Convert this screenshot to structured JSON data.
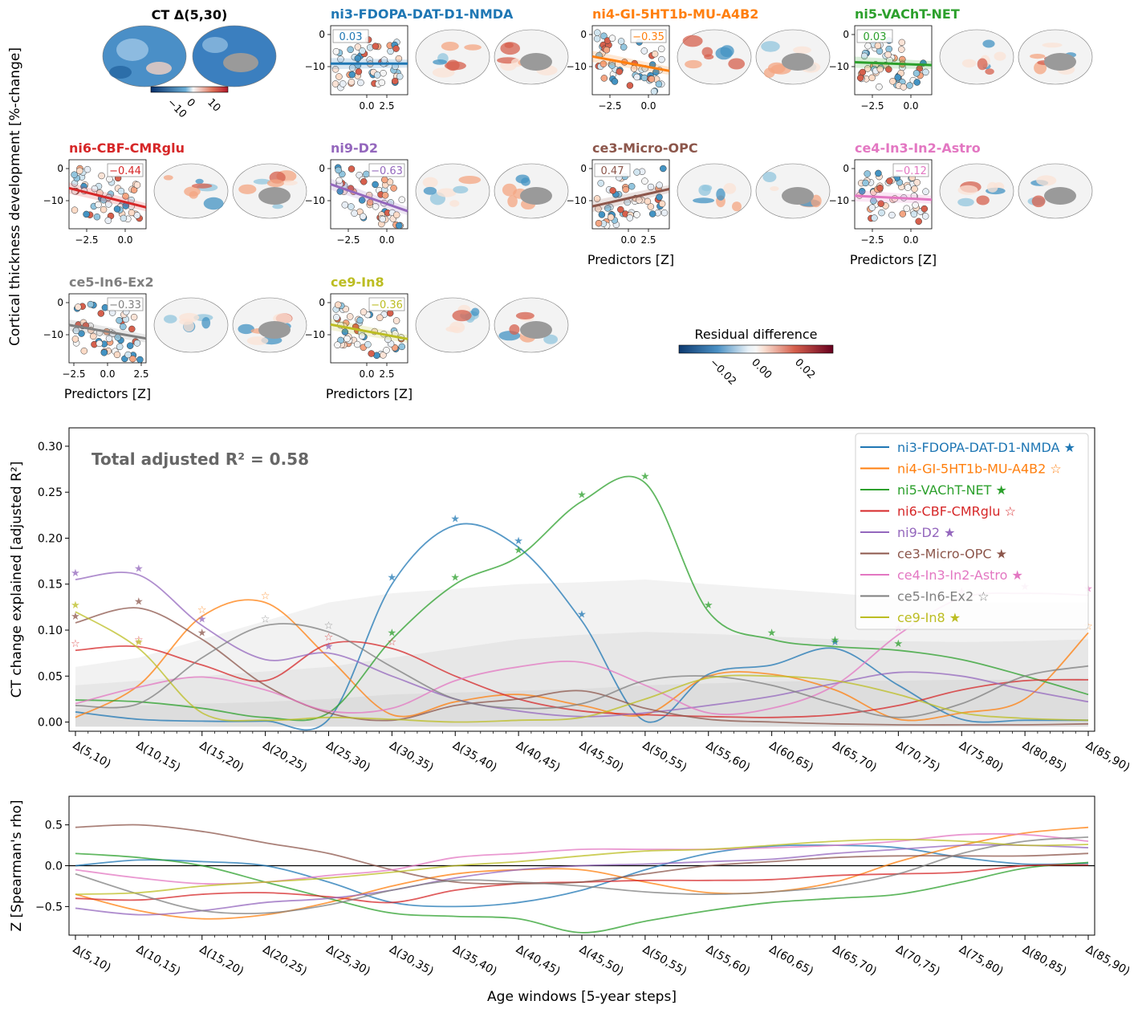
{
  "figure": {
    "left_ylabel": "Cortical thickness development [%-change]",
    "ct_title": "CT Δ(5,30)",
    "ct_colorbar_ticks": [
      "−10",
      "0",
      "10"
    ],
    "residual_title": "Residual difference",
    "residual_ticks": [
      "−0.02",
      "0.00",
      "0.02"
    ],
    "predictors_label": "Predictors [Z]"
  },
  "colors": {
    "ni3-FDOPA-DAT-D1-NMDA": "#1f77b4",
    "ni4-GI-5HT1b-MU-A4B2": "#ff7f0e",
    "ni5-VAChT-NET": "#2ca02c",
    "ni6-CBF-CMRglu": "#d62728",
    "ni9-D2": "#9467bd",
    "ce3-Micro-OPC": "#8c564b",
    "ce4-In3-In2-Astro": "#e377c2",
    "ce5-In6-Ex2": "#7f7f7f",
    "ce9-In8": "#bcbd22"
  },
  "panels": [
    {
      "name": "ni3-FDOPA-DAT-D1-NMDA",
      "rho": "0.03",
      "slope": 0.0,
      "yticks": [
        "0",
        "−10"
      ],
      "xticks": [
        "0.0",
        "2.5"
      ],
      "xlabel": false
    },
    {
      "name": "ni4-GI-5HT1b-MU-A4B2",
      "rho": "−0.35",
      "slope": -1.5,
      "yticks": [
        "0",
        "−10"
      ],
      "xticks": [
        "−2.5",
        "0.0"
      ],
      "xlabel": false
    },
    {
      "name": "ni5-VAChT-NET",
      "rho": "0.03",
      "slope": -0.3,
      "yticks": [
        "0",
        "−10"
      ],
      "xticks": [
        "−2.5",
        "0.0"
      ],
      "xlabel": false
    },
    {
      "name": "ni6-CBF-CMRglu",
      "rho": "−0.44",
      "slope": -2.0,
      "yticks": [
        "0",
        "−10"
      ],
      "xticks": [
        "−2.5",
        "0.0"
      ],
      "xlabel": false
    },
    {
      "name": "ni9-D2",
      "rho": "−0.63",
      "slope": -2.8,
      "yticks": [
        "0",
        "−10"
      ],
      "xticks": [
        "−2.5",
        "0.0"
      ],
      "xlabel": false
    },
    {
      "name": "ce3-Micro-OPC",
      "rho": "0.47",
      "slope": 1.8,
      "yticks": [
        "0",
        "−10"
      ],
      "xticks": [
        "0.0",
        "2.5"
      ],
      "xlabel": true
    },
    {
      "name": "ce4-In3-In2-Astro",
      "rho": "−0.12",
      "slope": -0.4,
      "yticks": [
        "0",
        "−10"
      ],
      "xticks": [
        "−2.5",
        "0.0"
      ],
      "xlabel": true
    },
    {
      "name": "ce5-In6-Ex2",
      "rho": "−0.33",
      "slope": -1.4,
      "yticks": [
        "0",
        "−10"
      ],
      "xticks": [
        "−2.5",
        "0.0",
        "2.5"
      ],
      "xlabel": true
    },
    {
      "name": "ce9-In8",
      "rho": "−0.36",
      "slope": -1.5,
      "yticks": [
        "0",
        "−10"
      ],
      "xticks": [
        "0.0",
        "2.5"
      ],
      "xlabel": true
    }
  ],
  "chart_data": [
    {
      "type": "line",
      "ylabel": "CT change explained [adjusted R²]",
      "ylim": [
        -0.01,
        0.32
      ],
      "yticks": [
        "0.00",
        "0.05",
        "0.10",
        "0.15",
        "0.20",
        "0.25",
        "0.30"
      ],
      "annotation": "Total adjusted R² = 0.58",
      "legend": "top-right",
      "categories": [
        "Δ(5,10)",
        "Δ(10,15)",
        "Δ(15,20)",
        "Δ(20,25)",
        "Δ(25,30)",
        "Δ(30,35)",
        "Δ(35,40)",
        "Δ(40,45)",
        "Δ(45,50)",
        "Δ(50,55)",
        "Δ(55,60)",
        "Δ(60,65)",
        "Δ(65,70)",
        "Δ(70,75)",
        "Δ(75,80)",
        "Δ(80,85)",
        "Δ(85,90)"
      ],
      "series": [
        {
          "name": "ni3-FDOPA-DAT-D1-NMDA",
          "marker": "★",
          "values": [
            0.011,
            0.003,
            0.001,
            0.001,
            0.003,
            0.15,
            0.214,
            0.19,
            0.11,
            0.001,
            0.052,
            0.062,
            0.08,
            0.04,
            0.003,
            0.002,
            0.002
          ]
        },
        {
          "name": "ni4-GI-5HT1b-MU-A4B2",
          "marker": "☆",
          "values": [
            0.005,
            0.04,
            0.115,
            0.13,
            0.07,
            0.008,
            0.022,
            0.03,
            0.018,
            0.008,
            0.05,
            0.052,
            0.035,
            0.003,
            0.01,
            0.025,
            0.097
          ]
        },
        {
          "name": "ni5-VAChT-NET",
          "marker": "★",
          "values": [
            0.024,
            0.022,
            0.015,
            0.005,
            0.01,
            0.09,
            0.15,
            0.18,
            0.24,
            0.26,
            0.12,
            0.09,
            0.082,
            0.078,
            0.068,
            0.05,
            0.03
          ]
        },
        {
          "name": "ni6-CBF-CMRglu",
          "marker": "☆",
          "values": [
            0.078,
            0.082,
            0.062,
            0.045,
            0.085,
            0.08,
            0.05,
            0.025,
            0.012,
            0.008,
            0.006,
            0.005,
            0.008,
            0.018,
            0.035,
            0.045,
            0.046
          ]
        },
        {
          "name": "ni9-D2",
          "marker": "★",
          "values": [
            0.155,
            0.16,
            0.105,
            0.068,
            0.075,
            0.05,
            0.025,
            0.012,
            0.006,
            0.01,
            0.018,
            0.028,
            0.042,
            0.054,
            0.05,
            0.035,
            0.022
          ]
        },
        {
          "name": "ce3-Micro-OPC",
          "marker": "★",
          "values": [
            0.108,
            0.124,
            0.09,
            0.04,
            0.01,
            0.002,
            0.018,
            0.025,
            0.034,
            0.015,
            0.003,
            0.0,
            -0.002,
            -0.003,
            -0.003,
            -0.003,
            -0.002
          ]
        },
        {
          "name": "ce4-In3-In2-Astro",
          "marker": "★",
          "values": [
            0.02,
            0.038,
            0.049,
            0.035,
            0.012,
            0.015,
            0.045,
            0.06,
            0.065,
            0.04,
            0.01,
            0.015,
            0.04,
            0.095,
            0.135,
            0.14,
            0.138
          ]
        },
        {
          "name": "ce5-In6-Ex2",
          "marker": "☆",
          "values": [
            0.018,
            0.02,
            0.07,
            0.105,
            0.098,
            0.06,
            0.025,
            0.015,
            0.02,
            0.045,
            0.05,
            0.04,
            0.02,
            0.005,
            0.02,
            0.05,
            0.061
          ]
        },
        {
          "name": "ce9-In8",
          "marker": "★",
          "values": [
            0.12,
            0.08,
            0.01,
            0.002,
            0.005,
            0.003,
            0.0,
            0.002,
            0.005,
            0.025,
            0.048,
            0.05,
            0.045,
            0.03,
            0.01,
            0.004,
            0.002
          ]
        }
      ]
    },
    {
      "type": "line",
      "xlabel": "Age windows [5-year steps]",
      "ylabel": "Z [Spearman's rho]",
      "ylim": [
        -0.85,
        0.85
      ],
      "yticks": [
        "−0.5",
        "0.0",
        "0.5"
      ],
      "categories": [
        "Δ(5,10)",
        "Δ(10,15)",
        "Δ(15,20)",
        "Δ(20,25)",
        "Δ(25,30)",
        "Δ(30,35)",
        "Δ(35,40)",
        "Δ(40,45)",
        "Δ(45,50)",
        "Δ(50,55)",
        "Δ(55,60)",
        "Δ(60,65)",
        "Δ(65,70)",
        "Δ(70,75)",
        "Δ(75,80)",
        "Δ(80,85)",
        "Δ(85,90)"
      ],
      "series": [
        {
          "name": "ni3-FDOPA-DAT-D1-NMDA",
          "values": [
            0.0,
            0.07,
            0.05,
            0.0,
            -0.2,
            -0.45,
            -0.5,
            -0.45,
            -0.3,
            -0.05,
            0.15,
            0.24,
            0.25,
            0.22,
            0.1,
            0.02,
            0.03
          ]
        },
        {
          "name": "ni4-GI-5HT1b-MU-A4B2",
          "values": [
            -0.35,
            -0.55,
            -0.65,
            -0.6,
            -0.45,
            -0.25,
            -0.1,
            -0.05,
            -0.05,
            -0.2,
            -0.33,
            -0.32,
            -0.2,
            0.05,
            0.25,
            0.4,
            0.47
          ]
        },
        {
          "name": "ni5-VAChT-NET",
          "values": [
            0.15,
            0.1,
            0.0,
            -0.2,
            -0.4,
            -0.58,
            -0.62,
            -0.65,
            -0.82,
            -0.68,
            -0.55,
            -0.45,
            -0.4,
            -0.35,
            -0.2,
            -0.03,
            0.04
          ]
        },
        {
          "name": "ni6-CBF-CMRglu",
          "values": [
            -0.4,
            -0.42,
            -0.35,
            -0.33,
            -0.38,
            -0.45,
            -0.3,
            -0.22,
            -0.2,
            -0.18,
            -0.18,
            -0.17,
            -0.12,
            -0.1,
            -0.08,
            0.0,
            0.01
          ]
        },
        {
          "name": "ni9-D2",
          "values": [
            -0.52,
            -0.6,
            -0.55,
            -0.45,
            -0.4,
            -0.3,
            -0.15,
            -0.05,
            0.0,
            0.02,
            0.05,
            0.08,
            0.15,
            0.2,
            0.25,
            0.25,
            0.22
          ]
        },
        {
          "name": "ce3-Micro-OPC",
          "values": [
            0.47,
            0.5,
            0.42,
            0.28,
            0.15,
            -0.05,
            -0.2,
            -0.22,
            -0.2,
            -0.1,
            0.0,
            0.05,
            0.1,
            0.12,
            0.12,
            0.12,
            0.15
          ]
        },
        {
          "name": "ce4-In3-In2-Astro",
          "values": [
            -0.05,
            -0.15,
            -0.22,
            -0.2,
            -0.12,
            -0.05,
            0.1,
            0.15,
            0.2,
            0.2,
            0.2,
            0.22,
            0.25,
            0.3,
            0.38,
            0.38,
            0.3
          ]
        },
        {
          "name": "ce5-In6-Ex2",
          "values": [
            -0.1,
            -0.35,
            -0.55,
            -0.58,
            -0.48,
            -0.3,
            -0.18,
            -0.2,
            -0.25,
            -0.32,
            -0.35,
            -0.32,
            -0.25,
            -0.1,
            0.15,
            0.3,
            0.35
          ]
        },
        {
          "name": "ce9-In8",
          "values": [
            -0.35,
            -0.33,
            -0.25,
            -0.2,
            -0.15,
            -0.08,
            0.0,
            0.05,
            0.12,
            0.18,
            0.2,
            0.25,
            0.3,
            0.32,
            0.3,
            0.25,
            0.26
          ]
        }
      ]
    }
  ]
}
